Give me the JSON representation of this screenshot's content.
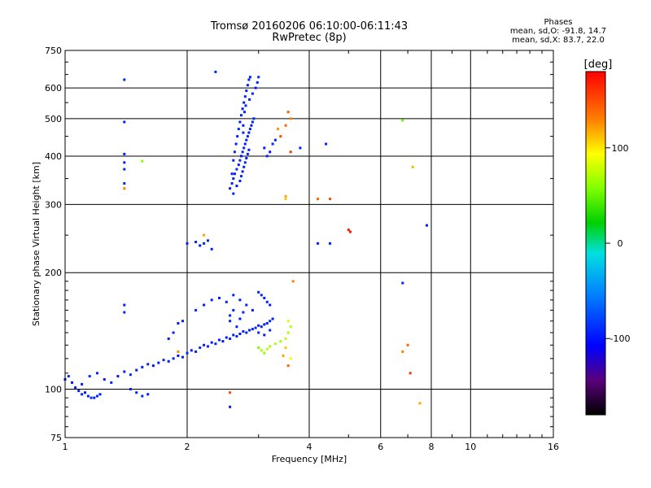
{
  "header": {
    "title_line1": "Tromsø 20160206 06:10:00-06:11:43",
    "title_line2": "RwPretec (8p)"
  },
  "phase_stats": {
    "heading": "Phases",
    "line_o": "mean, sd,O: -91.8, 14.7",
    "line_x": "mean, sd,X:  83.7, 22.0"
  },
  "chart_data": {
    "type": "scatter",
    "xlabel": "Frequency [MHz]",
    "ylabel": "Stationary phase Virtual Height [km]",
    "x_scale": "log",
    "y_scale": "log",
    "xlim": [
      1,
      16
    ],
    "ylim": [
      75,
      750
    ],
    "x_ticks": [
      1,
      2,
      4,
      6,
      8,
      10,
      16
    ],
    "y_ticks": [
      75,
      100,
      200,
      300,
      400,
      500,
      600,
      750
    ],
    "x_minor_ticks": [
      3,
      5,
      7,
      9,
      11,
      12,
      13,
      14,
      15
    ],
    "y_minor_ticks": [
      80,
      85,
      90,
      95,
      110,
      120,
      130,
      140,
      150,
      160,
      170,
      180,
      190,
      250,
      350,
      450,
      550,
      650,
      700
    ],
    "grid": true,
    "colorbar": {
      "label": "[deg]",
      "min": -180,
      "max": 180,
      "ticks": [
        -100,
        0,
        100
      ],
      "tick_labels": [
        "-100",
        "0",
        "100"
      ]
    },
    "series": [
      {
        "points": [
          [
            1.0,
            106,
            -95
          ],
          [
            1.02,
            108,
            -92
          ],
          [
            1.04,
            104,
            -98
          ],
          [
            1.06,
            101,
            -90
          ],
          [
            1.08,
            99,
            -96
          ],
          [
            1.1,
            97,
            -93
          ],
          [
            1.12,
            98,
            -100
          ],
          [
            1.14,
            96,
            -94
          ],
          [
            1.16,
            95,
            -88
          ],
          [
            1.18,
            95,
            -97
          ],
          [
            1.2,
            96,
            -91
          ],
          [
            1.22,
            97,
            -99
          ],
          [
            1.1,
            103,
            -95
          ],
          [
            1.15,
            108,
            -90
          ],
          [
            1.2,
            110,
            -93
          ],
          [
            1.25,
            106,
            -96
          ],
          [
            1.3,
            104,
            -92
          ],
          [
            1.35,
            108,
            -98
          ],
          [
            1.4,
            111,
            -94
          ],
          [
            1.45,
            109,
            -90
          ],
          [
            1.5,
            112,
            -95
          ],
          [
            1.55,
            114,
            -97
          ],
          [
            1.6,
            116,
            -92
          ],
          [
            1.65,
            115,
            -99
          ],
          [
            1.7,
            117,
            -94
          ],
          [
            1.75,
            119,
            -91
          ],
          [
            1.8,
            118,
            -96
          ],
          [
            1.85,
            120,
            -93
          ],
          [
            1.9,
            122,
            -100
          ],
          [
            1.95,
            121,
            -95
          ],
          [
            2.0,
            124,
            -92
          ],
          [
            2.05,
            126,
            -97
          ],
          [
            2.1,
            125,
            -94
          ],
          [
            2.15,
            128,
            -90
          ],
          [
            2.2,
            130,
            -96
          ],
          [
            2.25,
            129,
            -93
          ],
          [
            2.3,
            132,
            -98
          ],
          [
            2.35,
            131,
            -92
          ],
          [
            2.4,
            134,
            -95
          ],
          [
            2.45,
            133,
            -99
          ],
          [
            2.5,
            136,
            -94
          ],
          [
            2.55,
            135,
            -91
          ],
          [
            2.6,
            138,
            -96
          ],
          [
            2.65,
            137,
            -93
          ],
          [
            2.7,
            139,
            -97
          ],
          [
            2.75,
            141,
            -92
          ],
          [
            2.8,
            140,
            -95
          ],
          [
            2.85,
            142,
            -98
          ],
          [
            2.9,
            143,
            -94
          ],
          [
            2.95,
            144,
            -90
          ],
          [
            3.0,
            146,
            -96
          ],
          [
            3.05,
            145,
            -93
          ],
          [
            3.1,
            147,
            -97
          ],
          [
            3.15,
            148,
            -94
          ],
          [
            3.2,
            150,
            -92
          ],
          [
            3.25,
            152,
            -96
          ],
          [
            1.4,
            165,
            -95
          ],
          [
            1.4,
            158,
            -93
          ],
          [
            1.45,
            100,
            -96
          ],
          [
            1.5,
            98,
            -94
          ],
          [
            1.55,
            96,
            -92
          ],
          [
            1.6,
            97,
            -98
          ],
          [
            1.8,
            135,
            -95
          ],
          [
            1.85,
            140,
            -93
          ],
          [
            1.9,
            148,
            -97
          ],
          [
            1.95,
            150,
            -94
          ],
          [
            2.1,
            160,
            -92
          ],
          [
            2.2,
            165,
            -96
          ],
          [
            2.3,
            170,
            -93
          ],
          [
            2.4,
            172,
            -97
          ],
          [
            2.5,
            168,
            -94
          ],
          [
            2.6,
            175,
            -91
          ],
          [
            2.7,
            170,
            -96
          ],
          [
            2.8,
            165,
            -93
          ],
          [
            2.9,
            160,
            -97
          ],
          [
            3.0,
            178,
            -94
          ],
          [
            3.05,
            175,
            -92
          ],
          [
            3.1,
            172,
            -96
          ],
          [
            3.15,
            168,
            -93
          ],
          [
            3.2,
            165,
            -97
          ],
          [
            2.55,
            150,
            -94
          ],
          [
            2.55,
            155,
            -91
          ],
          [
            2.6,
            160,
            -96
          ],
          [
            2.65,
            145,
            -93
          ],
          [
            2.7,
            152,
            -98
          ],
          [
            2.75,
            158,
            -94
          ],
          [
            3.0,
            140,
            -92
          ],
          [
            3.1,
            138,
            -96
          ],
          [
            3.2,
            142,
            -93
          ],
          [
            3.0,
            128,
            60
          ],
          [
            3.05,
            126,
            70
          ],
          [
            3.1,
            124,
            65
          ],
          [
            3.15,
            127,
            75
          ],
          [
            3.2,
            129,
            68
          ],
          [
            3.3,
            131,
            72
          ],
          [
            3.4,
            133,
            66
          ],
          [
            3.5,
            135,
            74
          ],
          [
            3.55,
            140,
            69
          ],
          [
            3.6,
            145,
            71
          ],
          [
            3.55,
            150,
            80
          ],
          [
            3.6,
            120,
            90
          ],
          [
            3.5,
            128,
            110
          ],
          [
            3.45,
            122,
            120
          ],
          [
            3.65,
            190,
            130
          ],
          [
            3.55,
            115,
            140
          ],
          [
            2.55,
            330,
            -95
          ],
          [
            2.58,
            340,
            -92
          ],
          [
            2.6,
            350,
            -98
          ],
          [
            2.62,
            360,
            -94
          ],
          [
            2.65,
            370,
            -90
          ],
          [
            2.68,
            380,
            -96
          ],
          [
            2.7,
            390,
            -93
          ],
          [
            2.72,
            400,
            -99
          ],
          [
            2.74,
            410,
            -95
          ],
          [
            2.76,
            420,
            -91
          ],
          [
            2.78,
            430,
            -97
          ],
          [
            2.8,
            440,
            -94
          ],
          [
            2.82,
            450,
            -92
          ],
          [
            2.84,
            460,
            -96
          ],
          [
            2.86,
            470,
            -93
          ],
          [
            2.88,
            480,
            -98
          ],
          [
            2.9,
            490,
            -94
          ],
          [
            2.92,
            500,
            -91
          ],
          [
            2.6,
            390,
            -95
          ],
          [
            2.62,
            410,
            -92
          ],
          [
            2.64,
            430,
            -97
          ],
          [
            2.66,
            450,
            -94
          ],
          [
            2.68,
            470,
            -90
          ],
          [
            2.7,
            490,
            -96
          ],
          [
            2.72,
            510,
            -93
          ],
          [
            2.74,
            530,
            -99
          ],
          [
            2.76,
            550,
            -95
          ],
          [
            2.78,
            570,
            -91
          ],
          [
            2.8,
            590,
            -97
          ],
          [
            2.82,
            610,
            -94
          ],
          [
            2.84,
            630,
            -92
          ],
          [
            2.86,
            640,
            -96
          ],
          [
            2.75,
            460,
            -93
          ],
          [
            2.75,
            480,
            -98
          ],
          [
            2.77,
            520,
            -94
          ],
          [
            2.79,
            540,
            -91
          ],
          [
            2.85,
            560,
            -95
          ],
          [
            2.9,
            580,
            -92
          ],
          [
            2.95,
            600,
            -97
          ],
          [
            2.98,
            620,
            -94
          ],
          [
            3.0,
            640,
            -90
          ],
          [
            2.58,
            360,
            -96
          ],
          [
            2.6,
            320,
            -93
          ],
          [
            2.65,
            335,
            -99
          ],
          [
            2.7,
            345,
            -95
          ],
          [
            2.72,
            355,
            -91
          ],
          [
            2.74,
            365,
            -97
          ],
          [
            2.76,
            375,
            -94
          ],
          [
            2.78,
            385,
            -92
          ],
          [
            2.8,
            395,
            -96
          ],
          [
            2.82,
            405,
            -93
          ],
          [
            2.84,
            415,
            -98
          ],
          [
            3.1,
            420,
            -95
          ],
          [
            3.15,
            400,
            -93
          ],
          [
            3.2,
            410,
            -97
          ],
          [
            3.25,
            430,
            -94
          ],
          [
            3.3,
            440,
            -92
          ],
          [
            3.5,
            480,
            140
          ],
          [
            3.4,
            450,
            150
          ],
          [
            3.35,
            470,
            125
          ],
          [
            3.55,
            520,
            145
          ],
          [
            3.6,
            410,
            160
          ],
          [
            3.8,
            420,
            -95
          ],
          [
            1.4,
            630,
            -94
          ],
          [
            1.4,
            490,
            -96
          ],
          [
            1.4,
            405,
            -93
          ],
          [
            1.4,
            385,
            -95
          ],
          [
            1.4,
            340,
            -92
          ],
          [
            1.4,
            330,
            130
          ],
          [
            1.4,
            370,
            -91
          ],
          [
            1.55,
            388,
            60
          ],
          [
            2.35,
            660,
            -93
          ],
          [
            2.0,
            238,
            -95
          ],
          [
            2.1,
            240,
            -93
          ],
          [
            2.15,
            235,
            -97
          ],
          [
            2.2,
            238,
            -94
          ],
          [
            2.25,
            242,
            -92
          ],
          [
            2.3,
            230,
            -96
          ],
          [
            3.5,
            315,
            120
          ],
          [
            3.5,
            310,
            110
          ],
          [
            4.2,
            310,
            140
          ],
          [
            4.5,
            310,
            150
          ],
          [
            4.2,
            238,
            -95
          ],
          [
            4.5,
            238,
            -93
          ],
          [
            5.0,
            258,
            170
          ],
          [
            5.05,
            255,
            175
          ],
          [
            6.8,
            495,
            50
          ],
          [
            7.2,
            375,
            115
          ],
          [
            7.8,
            265,
            -95
          ],
          [
            6.8,
            188,
            -93
          ],
          [
            6.8,
            125,
            130
          ],
          [
            7.0,
            130,
            140
          ],
          [
            7.1,
            110,
            160
          ],
          [
            7.5,
            92,
            120
          ],
          [
            2.55,
            90,
            -95
          ],
          [
            2.55,
            98,
            150
          ],
          [
            1.9,
            125,
            130
          ],
          [
            2.2,
            250,
            120
          ],
          [
            4.4,
            430,
            -95
          ],
          [
            3.6,
            500,
            130
          ]
        ]
      }
    ]
  }
}
